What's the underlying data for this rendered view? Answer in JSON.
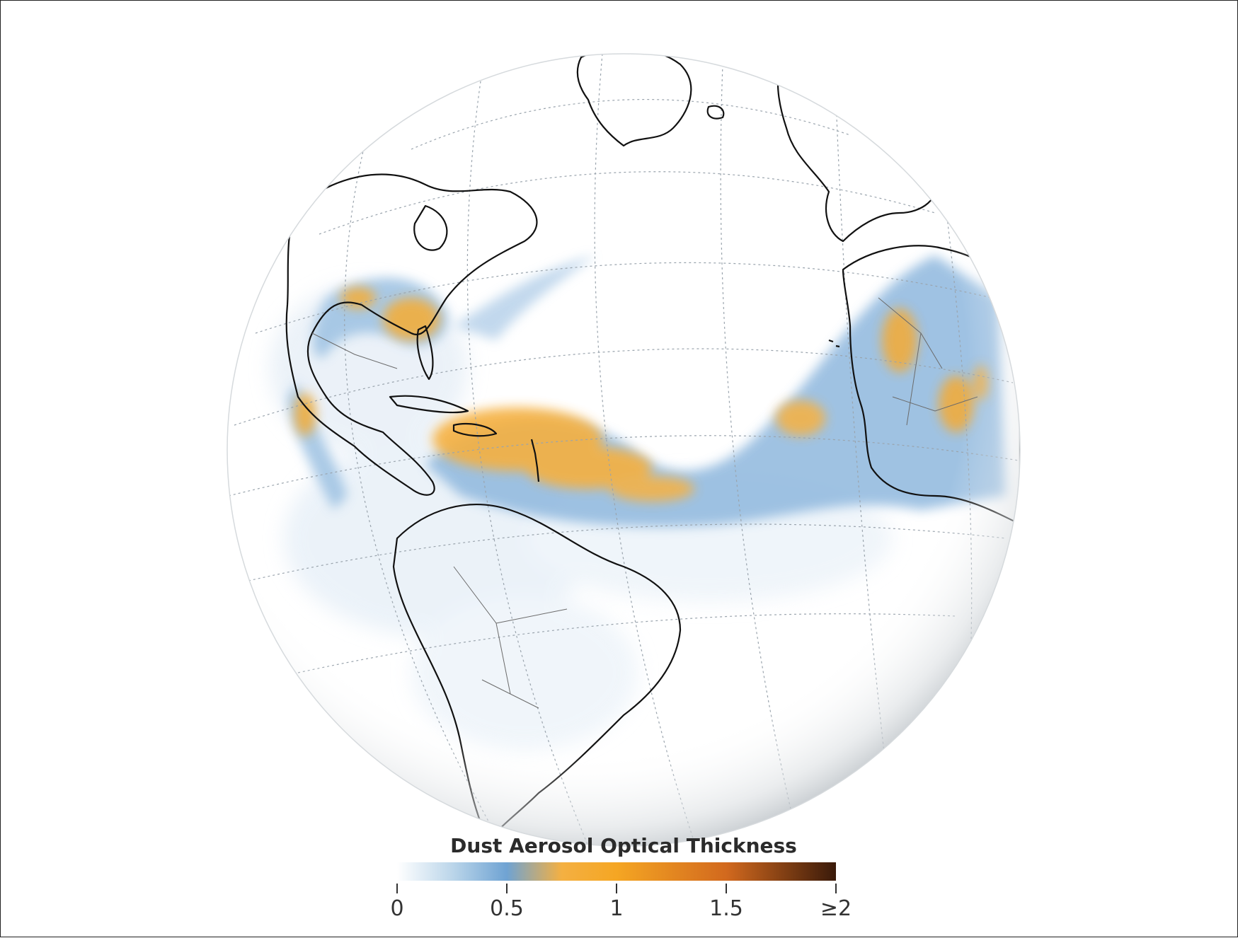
{
  "map": {
    "projection": "orthographic",
    "region": "Atlantic Ocean, Americas, West Africa",
    "land_outline_color": "#111111",
    "graticule_color": "#9aa4ad",
    "ocean_color": "#ffffff"
  },
  "legend": {
    "title": "Dust Aerosol Optical Thickness",
    "ticks": [
      "0",
      "0.5",
      "1",
      "1.5",
      "≥2"
    ],
    "tick_values": [
      0,
      0.5,
      1,
      1.5,
      2
    ],
    "colors": [
      {
        "value": 0,
        "color": "#ffffff"
      },
      {
        "value": 0.25,
        "color": "#bcd6ea"
      },
      {
        "value": 0.5,
        "color": "#6fa3d3"
      },
      {
        "value": 0.75,
        "color": "#f4b042"
      },
      {
        "value": 1.0,
        "color": "#f5a623"
      },
      {
        "value": 1.5,
        "color": "#d2691e"
      },
      {
        "value": 2.0,
        "color": "#3a1a0a"
      }
    ]
  }
}
